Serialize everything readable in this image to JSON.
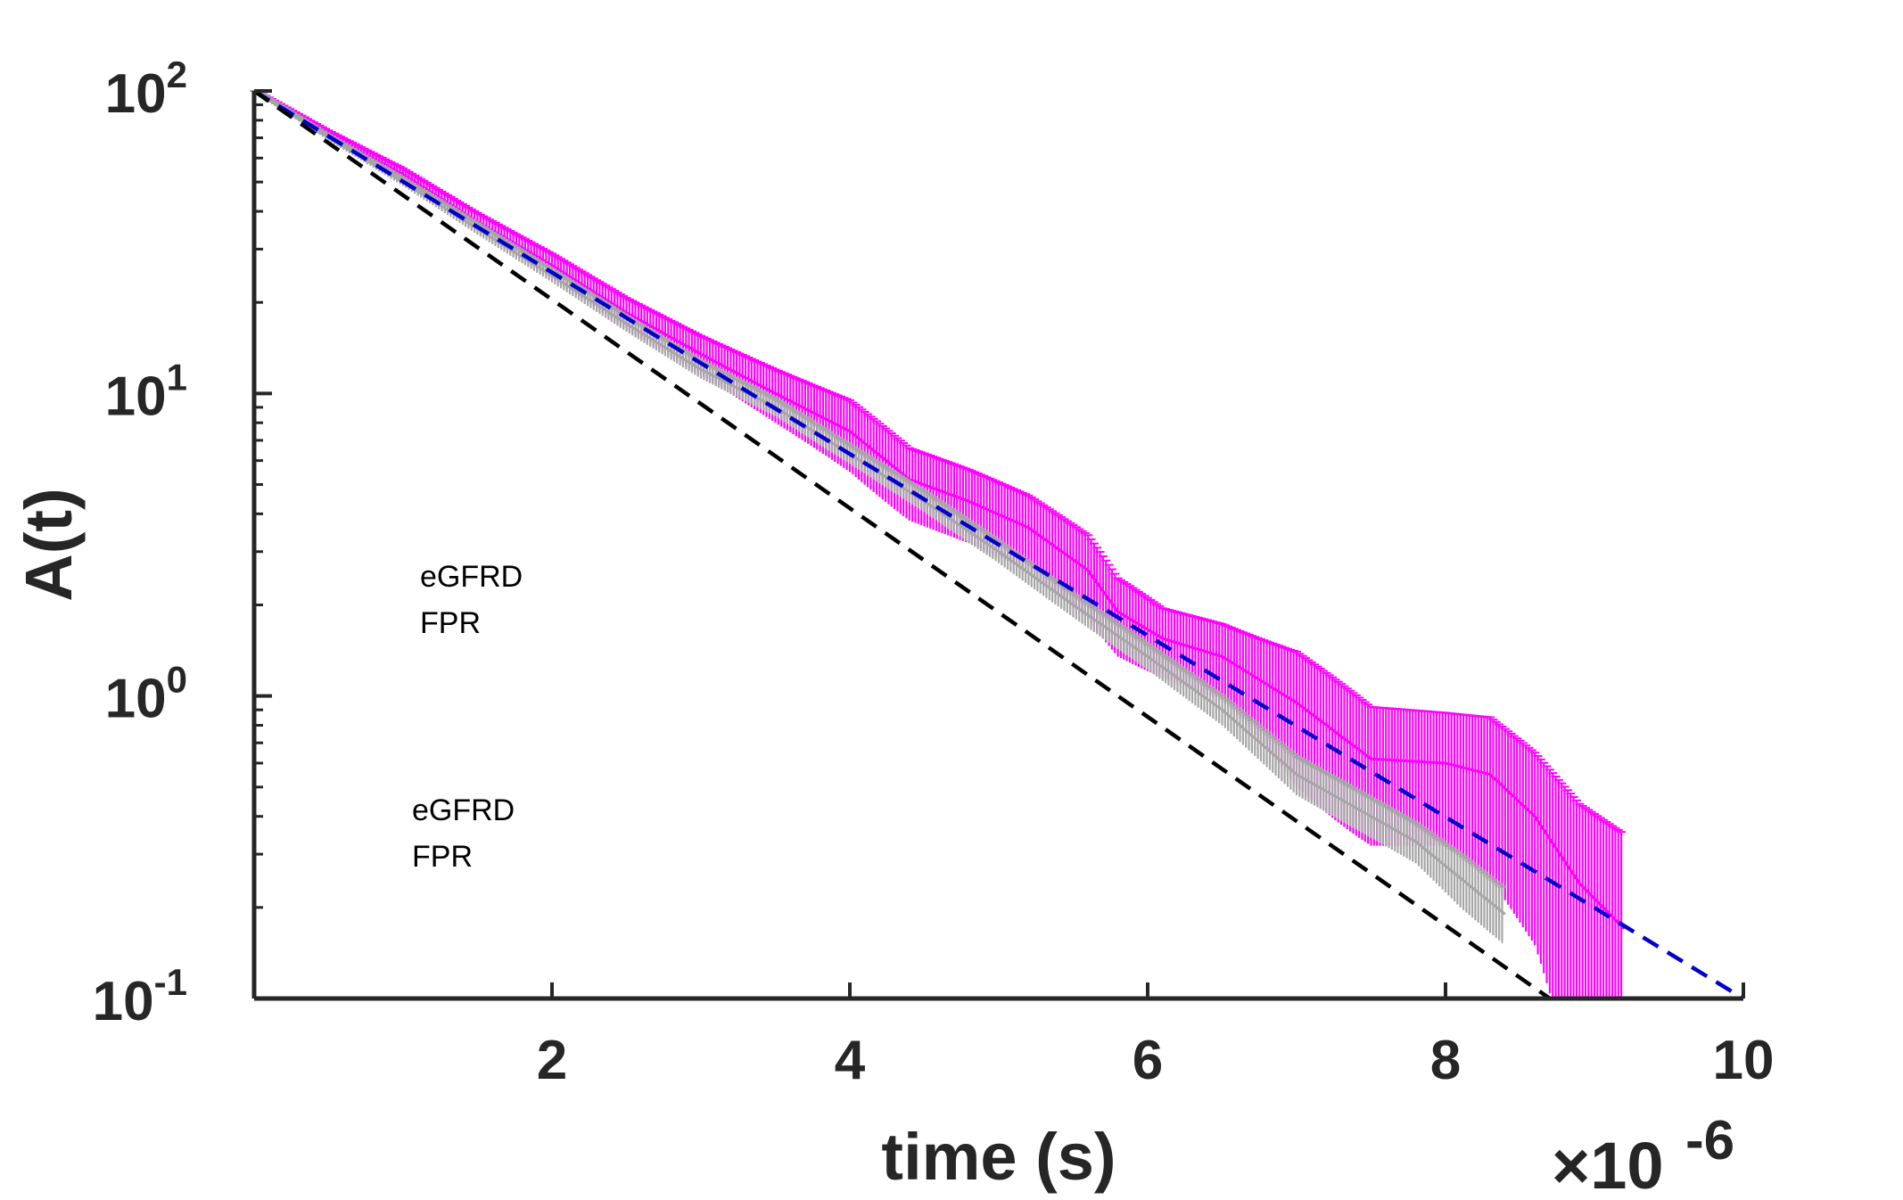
{
  "chart_data": {
    "type": "line",
    "xlabel": "time (s)",
    "ylabel": "A(t)",
    "x_exponent_label": "×10",
    "x_exponent_power": "-6",
    "x_scale_factor": 1e-06,
    "yscale": "log",
    "xlim": [
      0,
      10
    ],
    "ylim": [
      0.1,
      100
    ],
    "x_ticks": [
      2,
      4,
      6,
      8,
      10
    ],
    "x_tick_labels": [
      "2",
      "4",
      "6",
      "8",
      "10"
    ],
    "y_ticks": [
      100,
      10,
      1,
      0.1
    ],
    "y_tick_bases": [
      "10",
      "10",
      "10",
      "10"
    ],
    "y_tick_exponents": [
      "2",
      "1",
      "0",
      "-1"
    ],
    "grid": false,
    "legend_groups": [
      {
        "entries": [
          "eGFRD",
          "FPR"
        ]
      },
      {
        "entries": [
          "eGFRD",
          "FPR"
        ]
      }
    ],
    "series": [
      {
        "kind": "errorbar",
        "color": "#FF00FF",
        "x": [
          0.0,
          0.5,
          1.0,
          1.5,
          2.0,
          2.5,
          3.0,
          3.5,
          4.0,
          4.4,
          4.8,
          5.2,
          5.6,
          5.8,
          6.1,
          6.5,
          7.0,
          7.5,
          8.0,
          8.3,
          8.6,
          8.9,
          9.2
        ],
        "y": [
          100,
          72,
          53,
          37,
          26.5,
          18.5,
          13.5,
          10,
          7.5,
          5.2,
          4.4,
          3.6,
          2.6,
          1.9,
          1.55,
          1.35,
          0.95,
          0.62,
          0.6,
          0.55,
          0.4,
          0.24,
          0.17
        ],
        "err": [
          1.5,
          2,
          2.5,
          2.5,
          2.5,
          2.2,
          2.0,
          2.0,
          2.0,
          1.4,
          1.2,
          1.0,
          0.8,
          0.55,
          0.4,
          0.38,
          0.45,
          0.3,
          0.28,
          0.3,
          0.25,
          0.2,
          0.18
        ]
      },
      {
        "kind": "errorbar",
        "color": "#A6A6A6",
        "x": [
          0.0,
          0.5,
          1.0,
          1.5,
          2.0,
          2.5,
          3.0,
          3.5,
          4.0,
          4.5,
          5.0,
          5.5,
          6.0,
          6.5,
          7.0,
          7.5,
          7.8,
          8.1,
          8.4
        ],
        "y": [
          100,
          70,
          50,
          35,
          24.5,
          17,
          12,
          9,
          6.3,
          4.4,
          3.0,
          2.0,
          1.35,
          0.9,
          0.55,
          0.4,
          0.33,
          0.25,
          0.19
        ],
        "err": [
          1.5,
          1.5,
          1.5,
          1.5,
          1.2,
          1.0,
          0.8,
          0.6,
          0.45,
          0.35,
          0.25,
          0.18,
          0.13,
          0.1,
          0.08,
          0.06,
          0.05,
          0.05,
          0.04
        ]
      },
      {
        "kind": "dashed-line",
        "color": "#0000CC",
        "x": [
          0,
          10
        ],
        "y": [
          100,
          0.1
        ]
      },
      {
        "kind": "dashed-line",
        "color": "#000000",
        "x": [
          0,
          8.7
        ],
        "y": [
          100,
          0.1
        ]
      }
    ]
  }
}
